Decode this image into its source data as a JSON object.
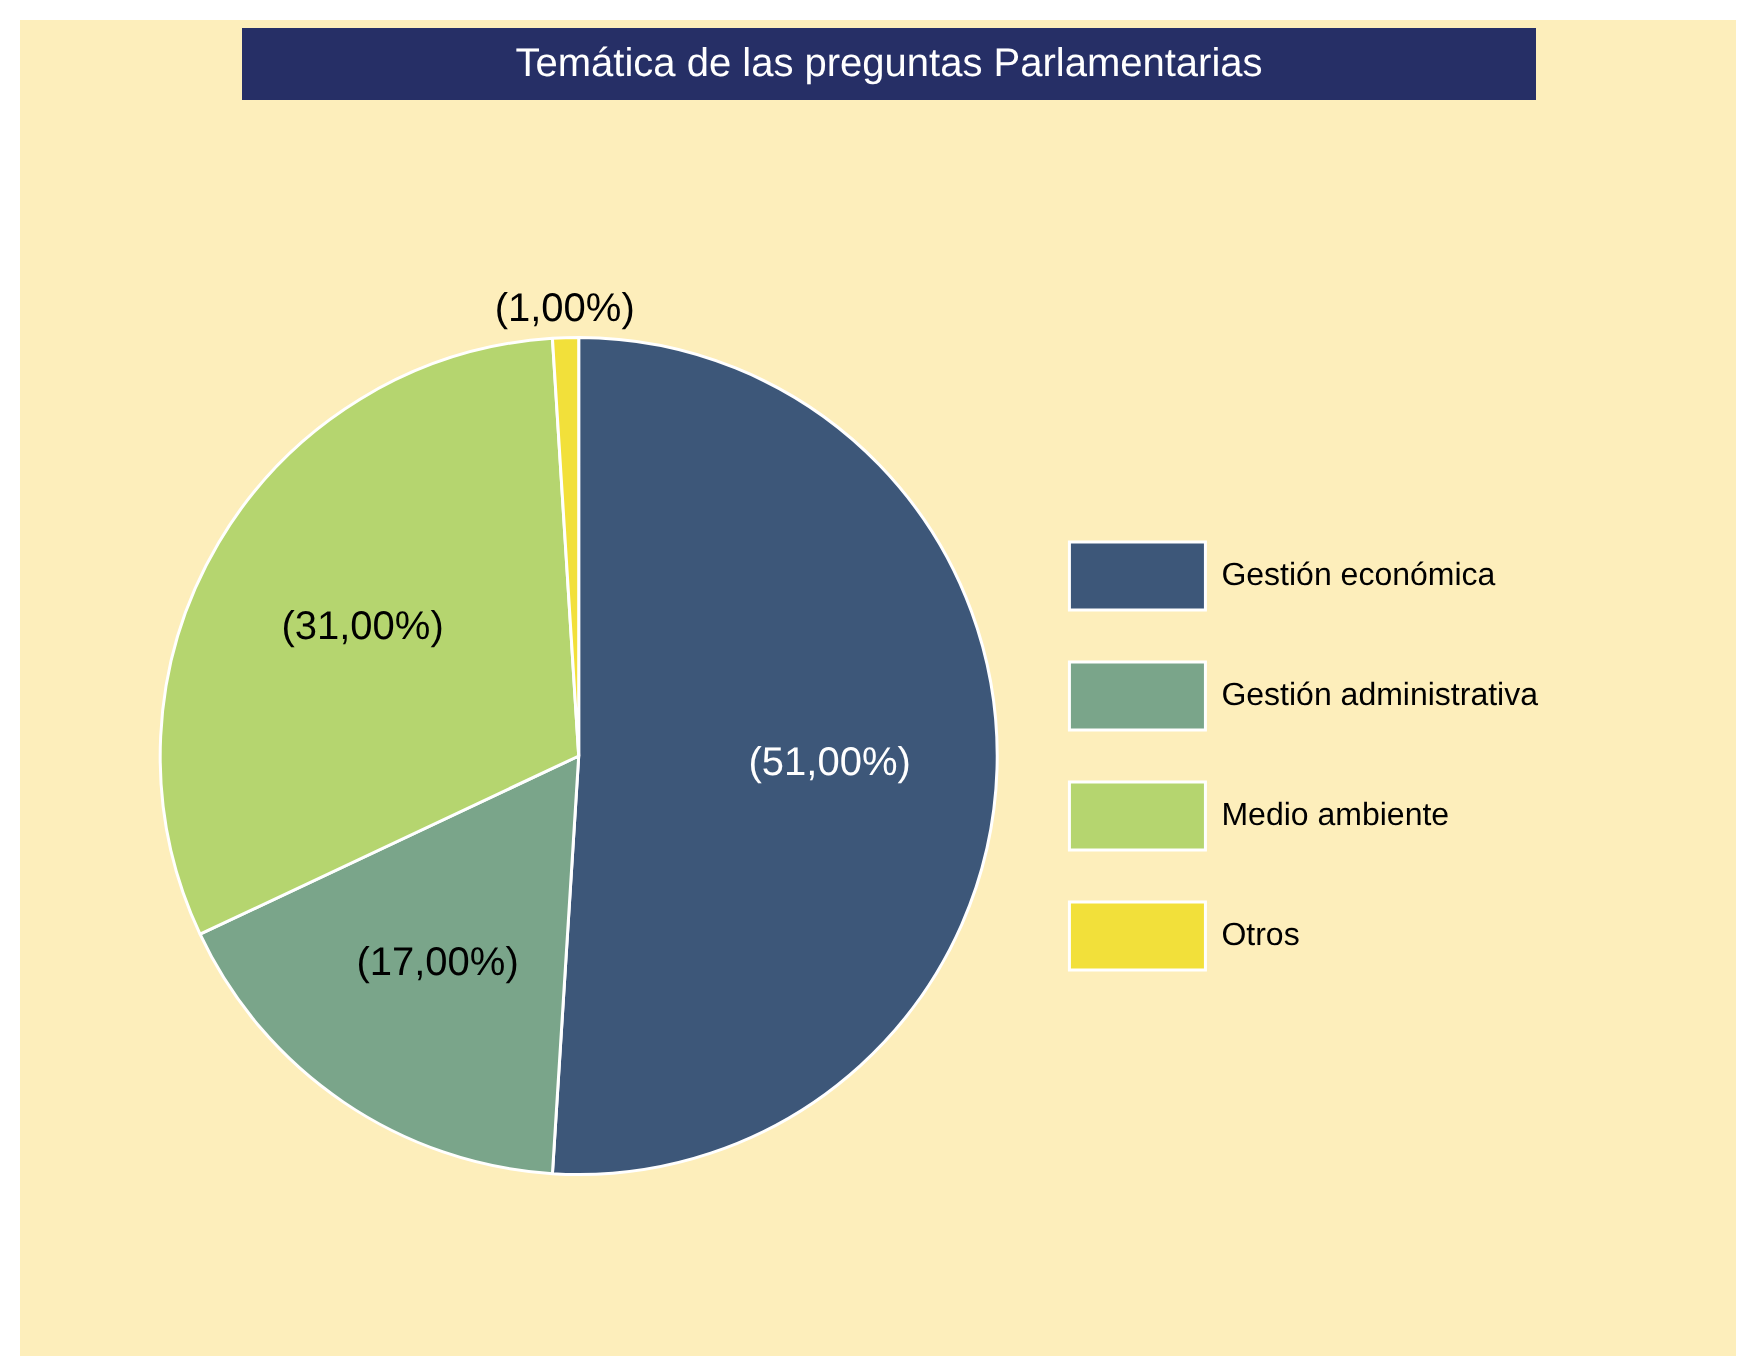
{
  "chart_data": {
    "type": "pie",
    "title": "Temática de las preguntas Parlamentarias",
    "categories": [
      "Gestión económica",
      "Gestión administrativa",
      "Medio ambiente",
      "Otros"
    ],
    "values": [
      51,
      17,
      31,
      1
    ],
    "colors": [
      "#3d5779",
      "#7aa58a",
      "#b5d56f",
      "#f2e03a"
    ],
    "value_labels": [
      "(51,00%)",
      "(17,00%)",
      "(31,00%)",
      "(1,00%)"
    ],
    "legend": "right"
  }
}
